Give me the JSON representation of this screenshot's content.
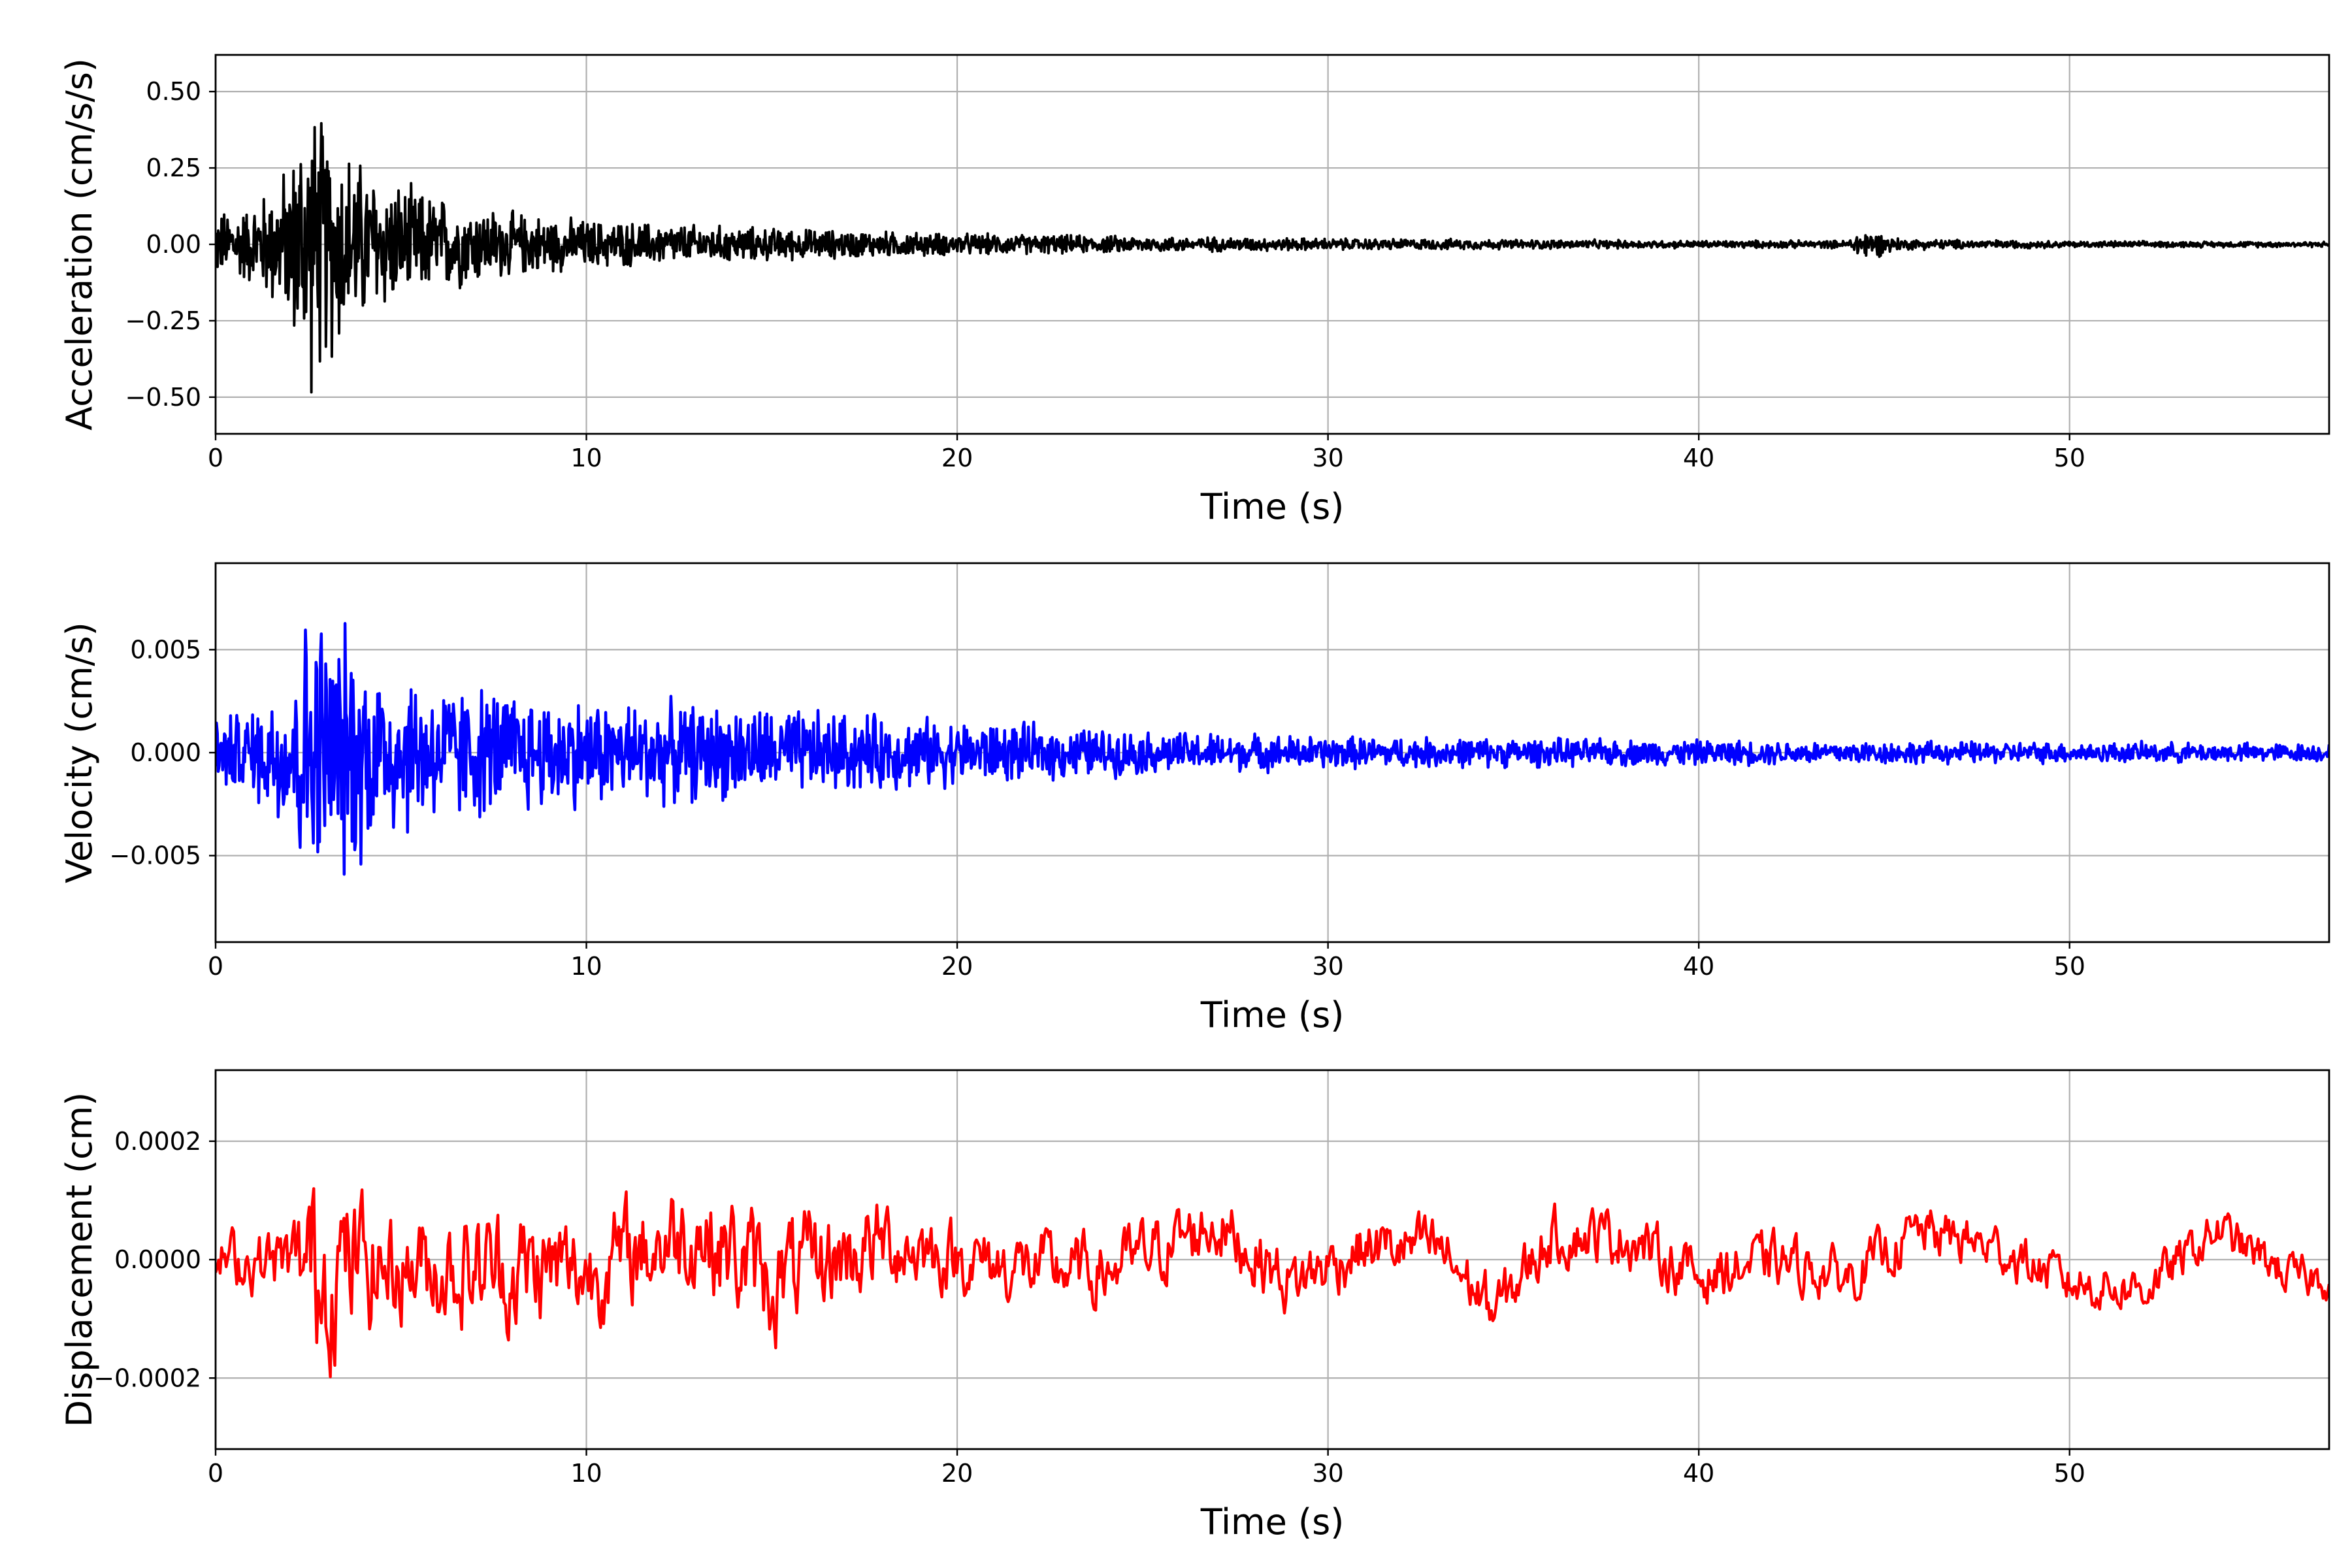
{
  "chart_data": [
    {
      "type": "line",
      "id": "acceleration",
      "xlabel": "Time (s)",
      "ylabel": "Acceleration (cm/s/s)",
      "xlim": [
        0,
        57
      ],
      "ylim": [
        -0.62,
        0.62
      ],
      "xticks": [
        0,
        10,
        20,
        30,
        40,
        50
      ],
      "yticks": [
        0.5,
        0.25,
        0.0,
        -0.25,
        -0.5
      ],
      "ytick_labels": [
        "0.50",
        "0.25",
        "0.00",
        "−0.25",
        "−0.50"
      ],
      "grid": true,
      "color": "#000000",
      "envelope": [
        [
          0,
          0.12
        ],
        [
          1,
          0.15
        ],
        [
          2,
          0.3
        ],
        [
          2.5,
          0.55
        ],
        [
          3,
          0.45
        ],
        [
          3.5,
          0.38
        ],
        [
          4,
          0.3
        ],
        [
          5,
          0.22
        ],
        [
          6,
          0.18
        ],
        [
          8,
          0.12
        ],
        [
          10,
          0.09
        ],
        [
          15,
          0.06
        ],
        [
          20,
          0.04
        ],
        [
          25,
          0.03
        ],
        [
          30,
          0.022
        ],
        [
          35,
          0.018
        ],
        [
          40,
          0.014
        ],
        [
          44,
          0.014
        ],
        [
          44.4,
          0.06
        ],
        [
          45.5,
          0.02
        ],
        [
          50,
          0.012
        ],
        [
          57,
          0.01
        ]
      ]
    },
    {
      "type": "line",
      "id": "velocity",
      "xlabel": "Time (s)",
      "ylabel": "Velocity (cm/s)",
      "xlim": [
        0,
        57
      ],
      "ylim": [
        -0.0092,
        0.0092
      ],
      "xticks": [
        0,
        10,
        20,
        30,
        40,
        50
      ],
      "yticks": [
        0.005,
        0.0,
        -0.005
      ],
      "ytick_labels": [
        "0.005",
        "0.000",
        "−0.005"
      ],
      "grid": true,
      "color": "#0000ff",
      "envelope": [
        [
          0,
          0.002
        ],
        [
          1,
          0.0025
        ],
        [
          2,
          0.005
        ],
        [
          2.6,
          0.0085
        ],
        [
          3,
          0.0075
        ],
        [
          3.5,
          0.007
        ],
        [
          4,
          0.006
        ],
        [
          5,
          0.0048
        ],
        [
          6,
          0.004
        ],
        [
          8,
          0.0035
        ],
        [
          10,
          0.003
        ],
        [
          15,
          0.0025
        ],
        [
          20,
          0.0018
        ],
        [
          25,
          0.0012
        ],
        [
          30,
          0.0009
        ],
        [
          40,
          0.0007
        ],
        [
          57,
          0.0005
        ]
      ]
    },
    {
      "type": "line",
      "id": "displacement",
      "xlabel": "Time (s)",
      "ylabel": "Displacement (cm)",
      "xlim": [
        0,
        57
      ],
      "ylim": [
        -0.00032,
        0.00032
      ],
      "xticks": [
        0,
        10,
        20,
        30,
        40,
        50
      ],
      "yticks": [
        0.0002,
        0.0,
        -0.0002
      ],
      "ytick_labels": [
        "0.0002",
        "0.0000",
        "−0.0002"
      ],
      "grid": true,
      "color": "#ff0000",
      "envelope": [
        [
          0,
          8e-05
        ],
        [
          2,
          0.0001
        ],
        [
          2.7,
          0.00028
        ],
        [
          3.5,
          0.00022
        ],
        [
          5,
          0.00015
        ],
        [
          8,
          0.00018
        ],
        [
          10,
          0.00015
        ],
        [
          15,
          0.00017
        ],
        [
          20,
          0.0001
        ],
        [
          25,
          0.0001
        ],
        [
          30,
          9e-05
        ],
        [
          40,
          8e-05
        ],
        [
          57,
          6e-05
        ]
      ],
      "drift": [
        [
          0,
          0
        ],
        [
          10,
          -2e-05
        ],
        [
          13,
          5e-05
        ],
        [
          15,
          -4e-05
        ],
        [
          18,
          3e-05
        ],
        [
          21,
          -1e-05
        ],
        [
          24,
          -2e-05
        ],
        [
          27,
          6e-05
        ],
        [
          29,
          -4e-05
        ],
        [
          31,
          2e-05
        ],
        [
          33,
          2e-05
        ],
        [
          34.5,
          -9e-05
        ],
        [
          36,
          4e-05
        ],
        [
          38,
          4e-05
        ],
        [
          40,
          -3e-05
        ],
        [
          42,
          0.0
        ],
        [
          44,
          -3e-05
        ],
        [
          46,
          5e-05
        ],
        [
          48,
          2e-05
        ],
        [
          50,
          -4e-05
        ],
        [
          52,
          -5e-05
        ],
        [
          54,
          5e-05
        ],
        [
          56,
          -3e-05
        ],
        [
          57,
          -3e-05
        ]
      ]
    }
  ]
}
